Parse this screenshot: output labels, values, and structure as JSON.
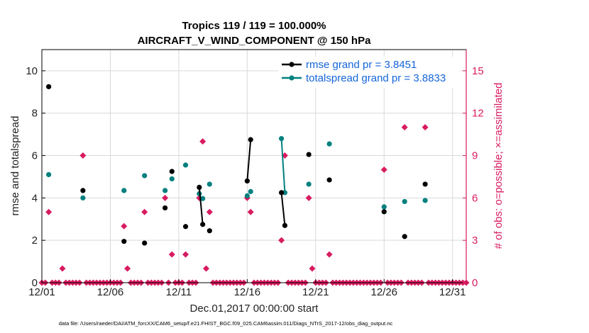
{
  "chart_data": {
    "type": "scatter",
    "title": "Tropics 119 / 119 = 100.000%",
    "subtitle": "AIRCRAFT_V_WIND_COMPONENT @ 150 hPa",
    "xlabel": "Dec.01,2017 00:00:00 start",
    "ylabel": "rmse and totalspread",
    "y2label": "# of obs: o=possible; ×=assimilated",
    "xlim": [
      0,
      31
    ],
    "ylim": [
      0,
      11
    ],
    "y2lim": [
      0,
      16.5
    ],
    "x_ticks": [
      0,
      5,
      10,
      15,
      20,
      25,
      30
    ],
    "x_tick_labels": [
      "12/01",
      "12/06",
      "12/11",
      "12/16",
      "12/21",
      "12/26",
      "12/31"
    ],
    "y_ticks": [
      "0",
      "2",
      "4",
      "6",
      "8",
      "10"
    ],
    "y2_ticks": [
      "0",
      "3",
      "6",
      "9",
      "12",
      "15"
    ],
    "grid": true,
    "legend_position": "top-right",
    "footnote": "data file: /Users/raeder/DAI/ATM_forcXX/CAM6_setup/f.e21.FHIST_BGC.f09_025.CAM6assim.011/Diags_NTrS_2017-12/obs_diag_output.nc",
    "series": [
      {
        "name": "rmse grand pr = 3.8451",
        "color": "#000000",
        "axis": "left",
        "marker": "circle",
        "points": [
          [
            0.5,
            9.25
          ],
          [
            3.0,
            4.35
          ],
          [
            6.0,
            1.95
          ],
          [
            7.5,
            1.87
          ],
          [
            9.0,
            3.53
          ],
          [
            9.5,
            5.25
          ],
          [
            10.5,
            2.65
          ],
          [
            11.5,
            4.5
          ],
          [
            11.75,
            2.75
          ],
          [
            12.25,
            2.45
          ],
          [
            15.0,
            4.8
          ],
          [
            15.25,
            6.75
          ],
          [
            17.5,
            4.25
          ],
          [
            17.75,
            2.7
          ],
          [
            19.5,
            6.05
          ],
          [
            21.0,
            4.85
          ],
          [
            25.0,
            3.35
          ],
          [
            26.5,
            2.18
          ],
          [
            28.0,
            4.65
          ]
        ],
        "line_segments": [
          [
            [
              11.5,
              4.5
            ],
            [
              11.75,
              2.75
            ]
          ],
          [
            [
              15.0,
              4.8
            ],
            [
              15.25,
              6.75
            ]
          ],
          [
            [
              17.5,
              4.25
            ],
            [
              17.75,
              2.7
            ]
          ]
        ]
      },
      {
        "name": "totalspread grand pr = 3.8833",
        "color": "#00807f",
        "axis": "left",
        "marker": "circle",
        "points": [
          [
            0.5,
            5.1
          ],
          [
            3.0,
            4.0
          ],
          [
            6.0,
            4.35
          ],
          [
            7.5,
            5.05
          ],
          [
            9.0,
            4.35
          ],
          [
            9.5,
            4.9
          ],
          [
            10.5,
            5.55
          ],
          [
            11.5,
            4.2
          ],
          [
            11.75,
            3.97
          ],
          [
            12.25,
            4.65
          ],
          [
            15.0,
            4.1
          ],
          [
            15.25,
            4.3
          ],
          [
            17.5,
            6.8
          ],
          [
            17.75,
            4.25
          ],
          [
            19.5,
            4.65
          ],
          [
            21.0,
            6.55
          ],
          [
            25.0,
            3.58
          ],
          [
            26.5,
            3.83
          ],
          [
            28.0,
            3.88
          ]
        ],
        "line_segments": [
          [
            [
              17.5,
              6.8
            ],
            [
              17.75,
              4.25
            ]
          ]
        ]
      },
      {
        "name": "# of obs possible",
        "color": "#d81b60",
        "axis": "right",
        "marker": "circle",
        "points": [
          [
            0.5,
            5
          ],
          [
            1.5,
            1
          ],
          [
            3.0,
            9
          ],
          [
            6.0,
            4
          ],
          [
            6.25,
            1
          ],
          [
            7.5,
            5
          ],
          [
            9.0,
            6
          ],
          [
            9.5,
            2
          ],
          [
            10.5,
            2
          ],
          [
            11.5,
            6
          ],
          [
            11.75,
            10
          ],
          [
            12.0,
            1
          ],
          [
            12.25,
            5
          ],
          [
            15.0,
            6
          ],
          [
            15.25,
            5
          ],
          [
            17.5,
            3
          ],
          [
            17.75,
            9
          ],
          [
            19.5,
            6
          ],
          [
            19.75,
            1
          ],
          [
            21.0,
            2
          ],
          [
            25.0,
            8
          ],
          [
            26.5,
            11
          ],
          [
            28.0,
            11
          ]
        ],
        "zero_points": [
          0,
          0.25,
          0.75,
          1,
          1.25,
          1.75,
          2,
          2.25,
          2.5,
          2.75,
          3.25,
          3.5,
          3.75,
          4,
          4.25,
          4.5,
          4.75,
          5,
          5.25,
          5.5,
          5.75,
          6.5,
          6.75,
          7,
          7.25,
          7.75,
          8,
          8.25,
          8.5,
          8.75,
          9.25,
          9.75,
          10,
          10.25,
          10.75,
          11,
          11.25,
          12.5,
          12.75,
          13,
          13.25,
          13.5,
          13.75,
          14,
          14.25,
          14.5,
          14.75,
          15.5,
          15.75,
          16,
          16.25,
          16.5,
          16.75,
          17,
          17.25,
          18,
          18.25,
          18.5,
          18.75,
          19,
          19.25,
          20,
          20.25,
          20.5,
          20.75,
          21.25,
          21.5,
          21.75,
          22,
          22.25,
          22.5,
          22.75,
          23,
          23.25,
          23.5,
          23.75,
          24,
          24.25,
          24.5,
          24.75,
          25.25,
          25.5,
          25.75,
          26,
          26.25,
          26.75,
          27,
          27.25,
          27.5,
          27.75,
          28.25,
          28.5,
          28.75,
          29,
          29.25,
          29.5,
          29.75,
          30,
          30.25,
          30.5,
          30.75,
          31
        ]
      }
    ]
  }
}
